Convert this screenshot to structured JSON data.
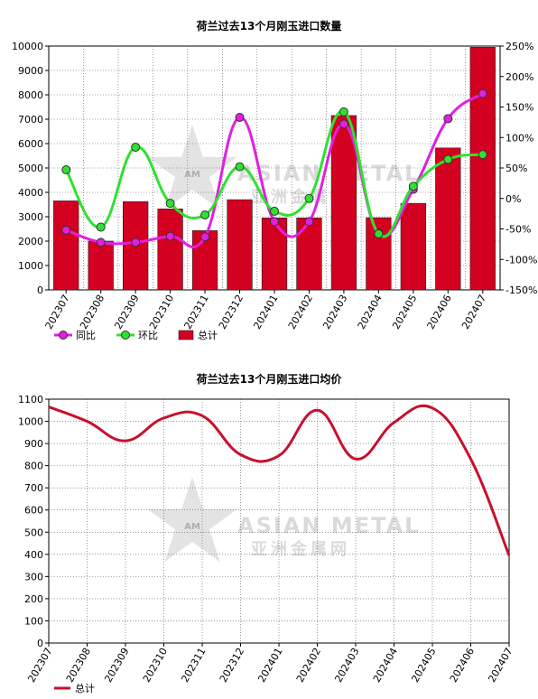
{
  "watermark": {
    "line1": "ASIAN METAL",
    "line2": "亚洲金属网",
    "logo_text": "AM"
  },
  "chart_data": [
    {
      "type": "bar",
      "title": "荷兰过去13个月刚玉进口数量",
      "categories": [
        "202307",
        "202308",
        "202309",
        "202310",
        "202311",
        "202312",
        "202401",
        "202402",
        "202403",
        "202404",
        "202405",
        "202406",
        "202407"
      ],
      "ylim": [
        0,
        10000
      ],
      "yticks": [
        "0",
        "1000",
        "2000",
        "3000",
        "4000",
        "5000",
        "6000",
        "7000",
        "8000",
        "9000",
        "10000"
      ],
      "y2lim": [
        -150,
        250
      ],
      "y2ticks": [
        "-150%",
        "-100%",
        "-50%",
        "0%",
        "50%",
        "100%",
        "150%",
        "200%",
        "250%"
      ],
      "grid": true,
      "legend_position": "bottom-left",
      "colors": {
        "bar": "#d40020",
        "yoy": "#e020e0",
        "mom": "#30e030"
      },
      "series": [
        {
          "name": "总计",
          "kind": "bar",
          "axis": "left",
          "values": [
            3650,
            2000,
            3620,
            3320,
            2430,
            3700,
            2950,
            2950,
            7150,
            2960,
            3550,
            5820,
            9950
          ]
        },
        {
          "name": "同比",
          "kind": "line",
          "axis": "right",
          "values": [
            -52,
            -72,
            -72,
            -62,
            -63,
            133,
            -38,
            -38,
            122,
            -57,
            15,
            131,
            172
          ]
        },
        {
          "name": "环比",
          "kind": "line",
          "axis": "right",
          "values": [
            47,
            -47,
            84,
            -8,
            -27,
            52,
            -21,
            0,
            142,
            -58,
            20,
            64,
            72
          ]
        }
      ]
    },
    {
      "type": "line",
      "title": "荷兰过去13个月刚玉进口均价",
      "categories": [
        "202307",
        "202308",
        "202309",
        "202310",
        "202311",
        "202312",
        "202401",
        "202402",
        "202403",
        "202404",
        "202405",
        "202406",
        "202407"
      ],
      "ylim": [
        0,
        1100
      ],
      "yticks": [
        "0",
        "100",
        "200",
        "300",
        "400",
        "500",
        "600",
        "700",
        "800",
        "900",
        "1000",
        "1100"
      ],
      "grid": true,
      "legend_position": "bottom-left",
      "colors": {
        "line": "#c8102e"
      },
      "series": [
        {
          "name": "总计",
          "values": [
            1065,
            1000,
            912,
            1015,
            1025,
            850,
            845,
            1050,
            830,
            995,
            1060,
            830,
            395
          ]
        }
      ]
    }
  ]
}
